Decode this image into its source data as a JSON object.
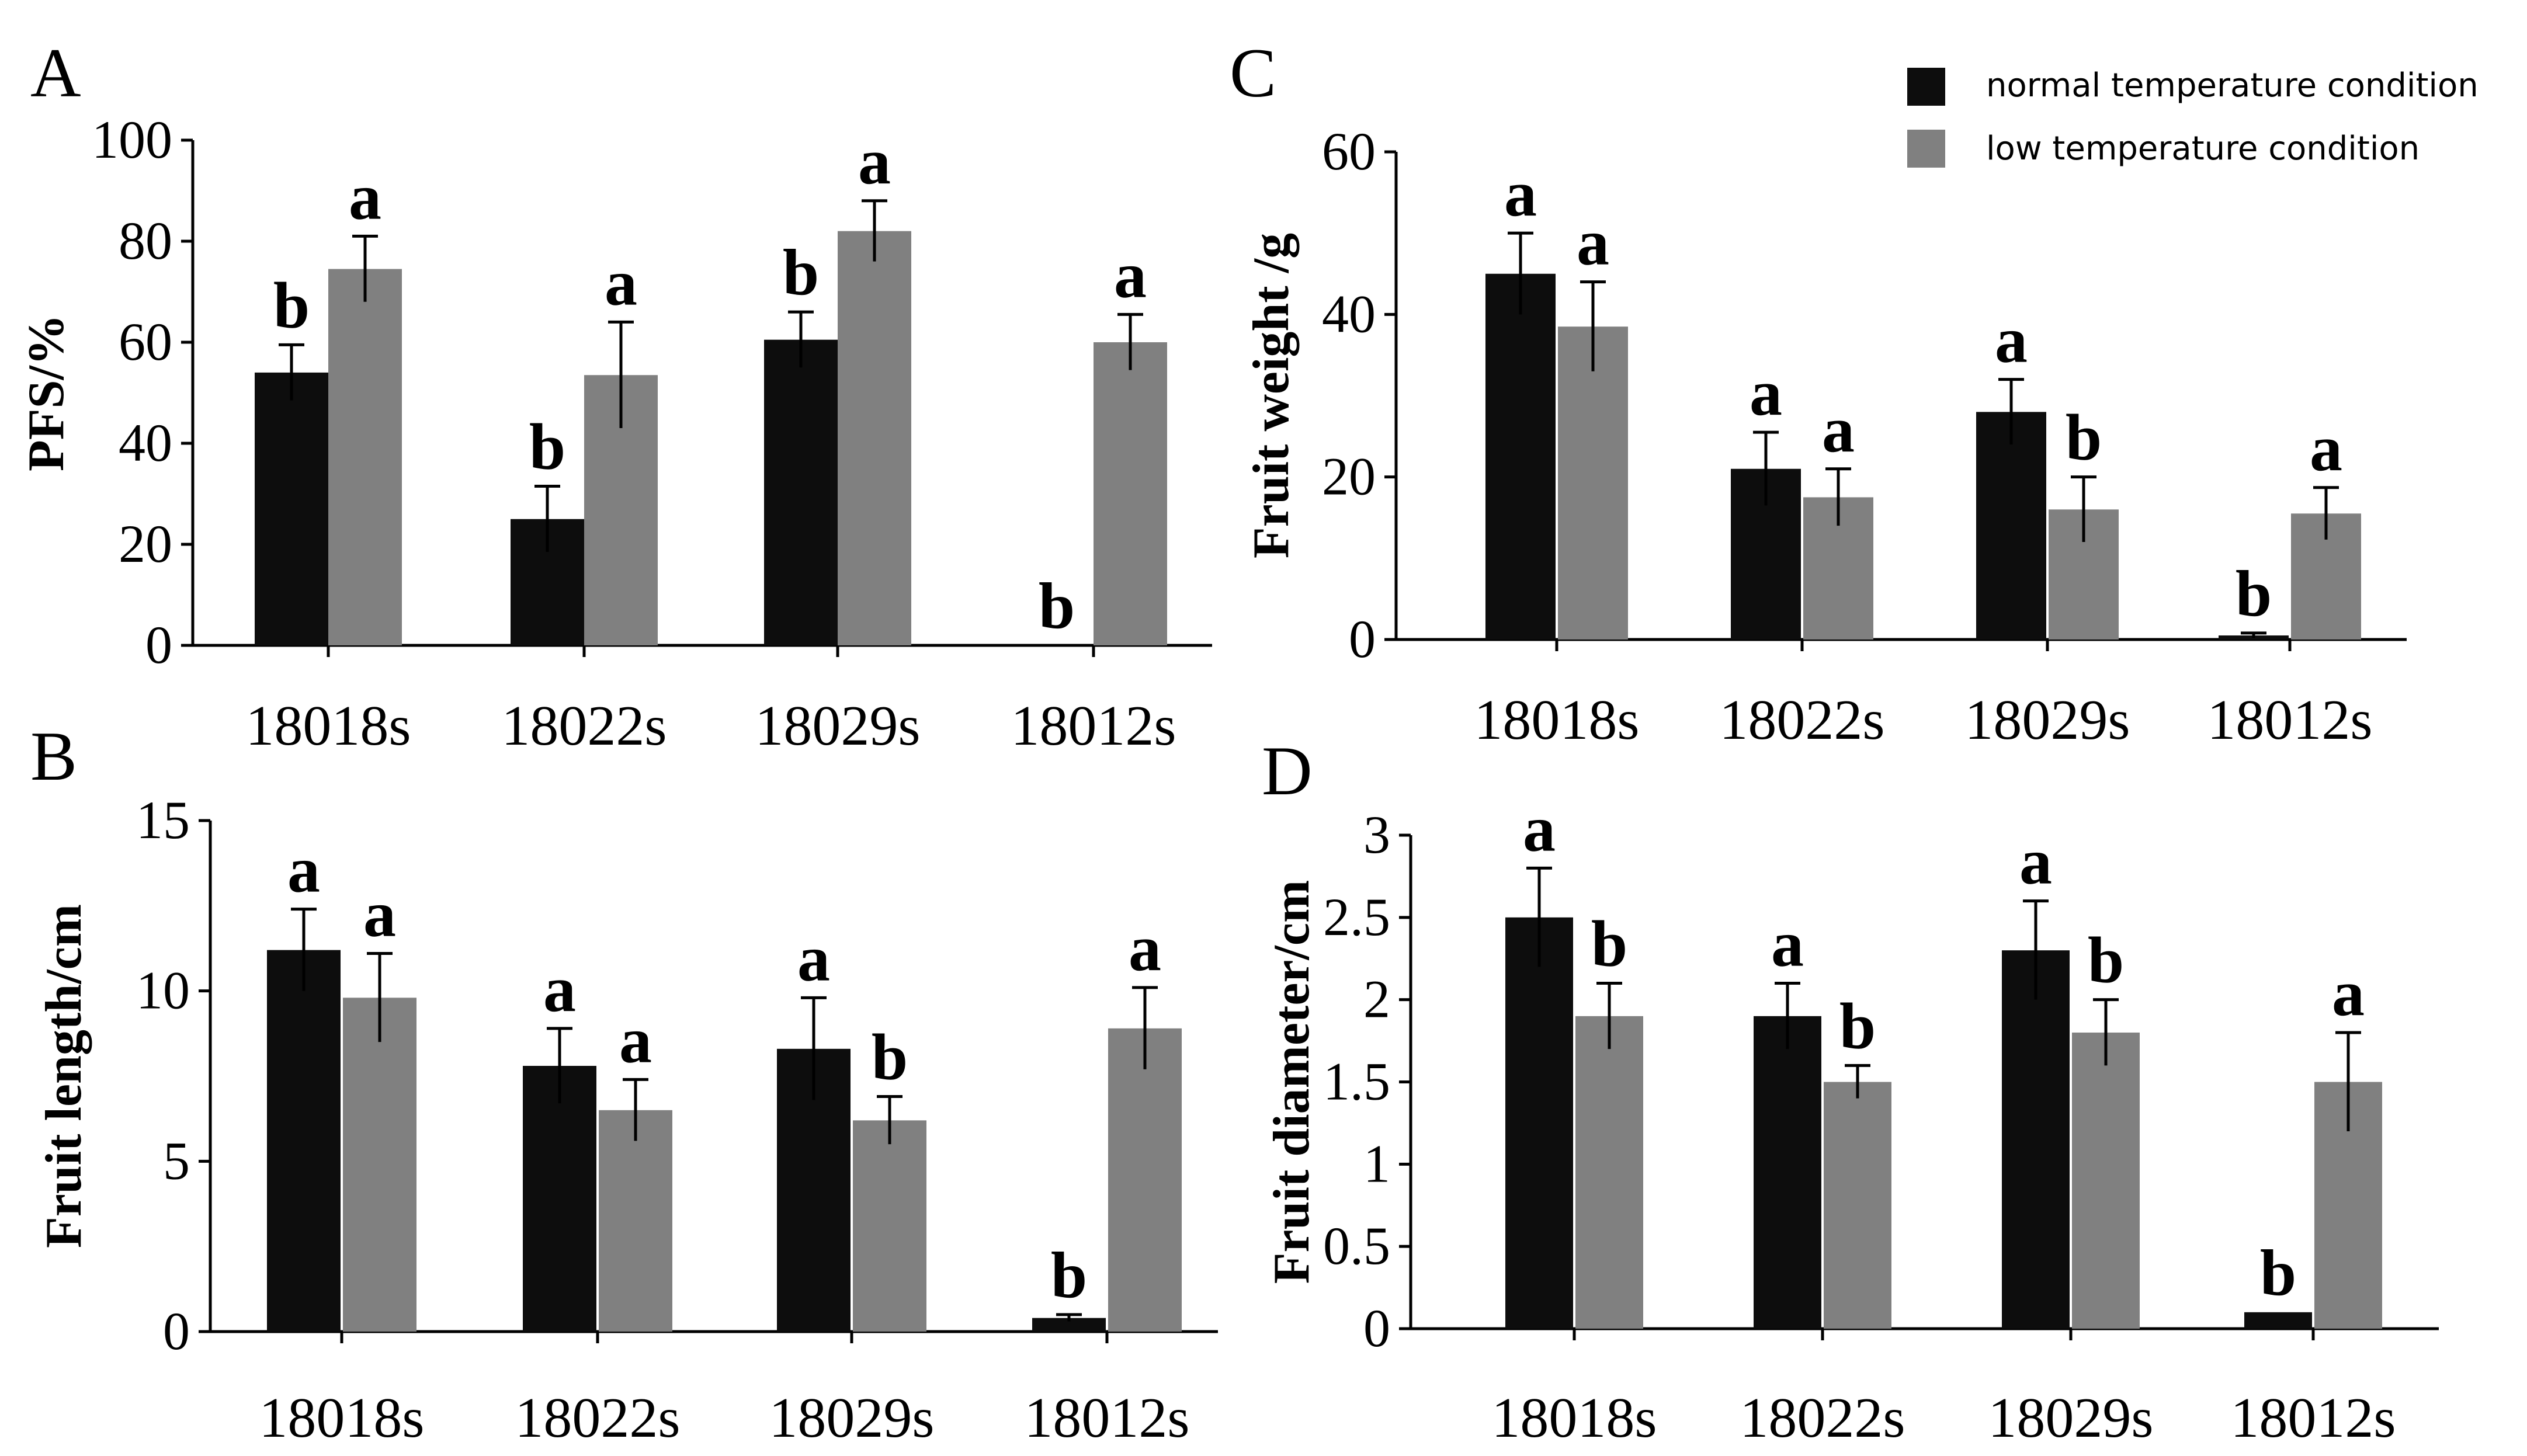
{
  "legend": {
    "items": [
      {
        "label": "normal temperature condition",
        "color": "#0d0d0d"
      },
      {
        "label": "low temperature condition",
        "color": "#808080"
      }
    ]
  },
  "chart_data": [
    {
      "panel": "A",
      "type": "bar",
      "ylabel": "PFS/%",
      "ylim": [
        0,
        100
      ],
      "yticks": [
        0,
        20,
        40,
        60,
        80,
        100
      ],
      "ytick_labels": [
        "0",
        "20",
        "40",
        "60",
        "80",
        "100"
      ],
      "categories": [
        "18018s",
        "18022s",
        "18029s",
        "18012s"
      ],
      "series": [
        {
          "name": "normal temperature condition",
          "values": [
            54,
            25,
            60.5,
            0
          ],
          "errors": [
            5.5,
            6.5,
            5.5,
            0
          ],
          "letters": [
            "b",
            "b",
            "b",
            "b"
          ]
        },
        {
          "name": "low temperature condition",
          "values": [
            74.5,
            53.5,
            82,
            60
          ],
          "errors": [
            6.5,
            10.5,
            6,
            5.5
          ],
          "letters": [
            "a",
            "a",
            "a",
            "a"
          ]
        }
      ]
    },
    {
      "panel": "B",
      "type": "bar",
      "ylabel": "Fruit length/cm",
      "ylim": [
        0,
        15
      ],
      "yticks": [
        0,
        5,
        10,
        15
      ],
      "ytick_labels": [
        "0",
        "5",
        "10",
        "15"
      ],
      "categories": [
        "18018s",
        "18022s",
        "18029s",
        "18012s"
      ],
      "series": [
        {
          "name": "normal temperature condition",
          "values": [
            11.2,
            7.8,
            8.3,
            0.4
          ],
          "errors": [
            1.2,
            1.1,
            1.5,
            0.1
          ],
          "letters": [
            "a",
            "a",
            "a",
            "b"
          ]
        },
        {
          "name": "low temperature condition",
          "values": [
            9.8,
            6.5,
            6.2,
            8.9
          ],
          "errors": [
            1.3,
            0.9,
            0.7,
            1.2
          ],
          "letters": [
            "a",
            "a",
            "b",
            "a"
          ]
        }
      ]
    },
    {
      "panel": "C",
      "type": "bar",
      "ylabel": "Fruit weight /g",
      "ylim": [
        0,
        60
      ],
      "yticks": [
        0,
        20,
        40,
        60
      ],
      "ytick_labels": [
        "0",
        "20",
        "40",
        "60"
      ],
      "categories": [
        "18018s",
        "18022s",
        "18029s",
        "18012s"
      ],
      "series": [
        {
          "name": "normal temperature condition",
          "values": [
            45,
            21,
            28,
            0.5
          ],
          "errors": [
            5,
            4.5,
            4,
            0.3
          ],
          "letters": [
            "a",
            "a",
            "a",
            "b"
          ]
        },
        {
          "name": "low temperature condition",
          "values": [
            38.5,
            17.5,
            16,
            15.5
          ],
          "errors": [
            5.5,
            3.5,
            4,
            3.2
          ],
          "letters": [
            "a",
            "a",
            "b",
            "a"
          ]
        }
      ]
    },
    {
      "panel": "D",
      "type": "bar",
      "ylabel": "Fruit diameter/cm",
      "ylim": [
        0,
        3
      ],
      "yticks": [
        0,
        0.5,
        1,
        1.5,
        2,
        2.5,
        3
      ],
      "ytick_labels": [
        "0",
        "0.5",
        "1",
        "1.5",
        "2",
        "2.5",
        "3"
      ],
      "categories": [
        "18018s",
        "18022s",
        "18029s",
        "18012s"
      ],
      "series": [
        {
          "name": "normal temperature condition",
          "values": [
            2.5,
            1.9,
            2.3,
            0.1
          ],
          "errors": [
            0.3,
            0.2,
            0.3,
            0
          ],
          "letters": [
            "a",
            "a",
            "a",
            "b"
          ]
        },
        {
          "name": "low temperature condition",
          "values": [
            1.9,
            1.5,
            1.8,
            1.5
          ],
          "errors": [
            0.2,
            0.1,
            0.2,
            0.3
          ],
          "letters": [
            "b",
            "b",
            "b",
            "a"
          ]
        }
      ]
    }
  ]
}
